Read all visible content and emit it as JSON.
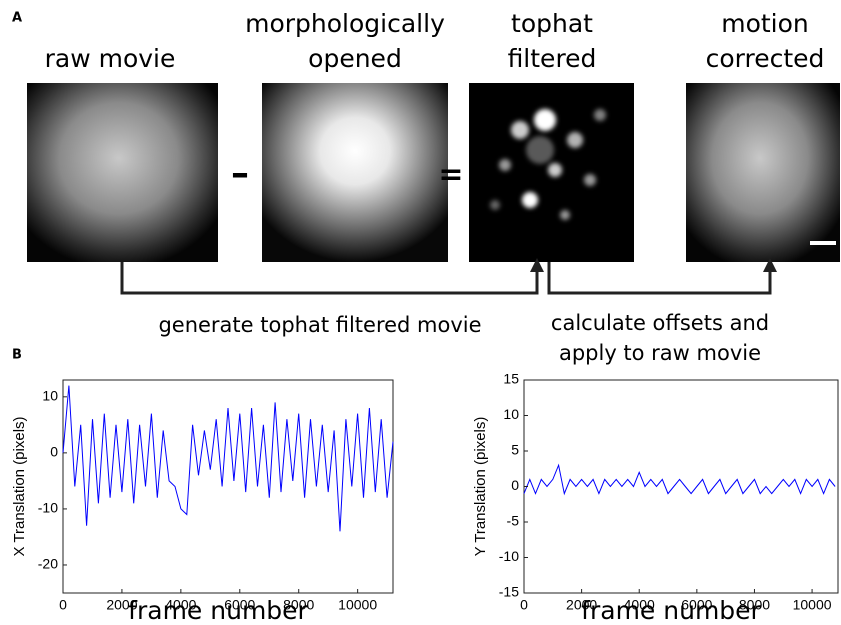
{
  "panel_a": {
    "label": "A",
    "panels": [
      {
        "title": [
          "raw movie"
        ]
      },
      {
        "title": [
          "morphologically",
          "opened"
        ]
      },
      {
        "title": [
          "tophat",
          "filtered"
        ]
      },
      {
        "title": [
          "motion",
          "corrected"
        ]
      }
    ],
    "operators": [
      "–",
      "="
    ],
    "captions": [
      [
        "generate tophat filtered movie"
      ],
      [
        "calculate offsets and",
        "apply to raw movie"
      ]
    ]
  },
  "panel_b_label": "B",
  "chart_data": [
    {
      "type": "line",
      "ylabel": "X Translation (pixels)",
      "xlabel": "frame number",
      "x": [
        0,
        200,
        400,
        600,
        800,
        1000,
        1200,
        1400,
        1600,
        1800,
        2000,
        2200,
        2400,
        2600,
        2800,
        3000,
        3200,
        3400,
        3600,
        3800,
        4000,
        4200,
        4400,
        4600,
        4800,
        5000,
        5200,
        5400,
        5600,
        5800,
        6000,
        6200,
        6400,
        6600,
        6800,
        7000,
        7200,
        7400,
        7600,
        7800,
        8000,
        8200,
        8400,
        8600,
        8800,
        9000,
        9200,
        9400,
        9600,
        9800,
        10000,
        10200,
        10400,
        10600,
        10800,
        11000,
        11200
      ],
      "series": [
        {
          "color": "#0000ff",
          "values": [
            0,
            12,
            -6,
            5,
            -13,
            6,
            -9,
            7,
            -8,
            5,
            -7,
            6,
            -9,
            5,
            -6,
            7,
            -8,
            4,
            -5,
            -6,
            -10,
            -11,
            5,
            -4,
            4,
            -3,
            6,
            -6,
            8,
            -5,
            7,
            -7,
            8,
            -6,
            5,
            -8,
            9,
            -7,
            6,
            -5,
            7,
            -8,
            6,
            -6,
            5,
            -7,
            4,
            -14,
            6,
            -6,
            7,
            -8,
            8,
            -7,
            6,
            -8,
            2
          ]
        }
      ],
      "xlim": [
        0,
        11200
      ],
      "ylim": [
        -25,
        13
      ],
      "xticks": [
        0,
        2000,
        4000,
        6000,
        8000,
        10000
      ],
      "yticks": [
        10,
        0,
        -10,
        -20
      ]
    },
    {
      "type": "line",
      "ylabel": "Y Translation (pixels)",
      "xlabel": "frame number",
      "x": [
        0,
        200,
        400,
        600,
        800,
        1000,
        1200,
        1400,
        1600,
        1800,
        2000,
        2200,
        2400,
        2600,
        2800,
        3000,
        3200,
        3400,
        3600,
        3800,
        4000,
        4200,
        4400,
        4600,
        4800,
        5000,
        5200,
        5400,
        5600,
        5800,
        6000,
        6200,
        6400,
        6600,
        6800,
        7000,
        7200,
        7400,
        7600,
        7800,
        8000,
        8200,
        8400,
        8600,
        8800,
        9000,
        9200,
        9400,
        9600,
        9800,
        10000,
        10200,
        10400,
        10600,
        10800
      ],
      "series": [
        {
          "color": "#0000ff",
          "values": [
            -1,
            1,
            -1,
            1,
            0,
            1,
            3,
            -1,
            1,
            0,
            1,
            0,
            1,
            -1,
            1,
            0,
            1,
            0,
            1,
            0,
            2,
            0,
            1,
            0,
            1,
            -1,
            0,
            1,
            0,
            -1,
            0,
            1,
            -1,
            0,
            1,
            -1,
            0,
            1,
            -1,
            0,
            1,
            -1,
            0,
            -1,
            0,
            1,
            0,
            1,
            -1,
            1,
            0,
            1,
            -1,
            1,
            0
          ]
        }
      ],
      "xlim": [
        0,
        10900
      ],
      "ylim": [
        -15,
        15
      ],
      "xticks": [
        0,
        2000,
        4000,
        6000,
        8000,
        10000
      ],
      "yticks": [
        15,
        10,
        5,
        0,
        -5,
        -10,
        -15
      ]
    }
  ]
}
